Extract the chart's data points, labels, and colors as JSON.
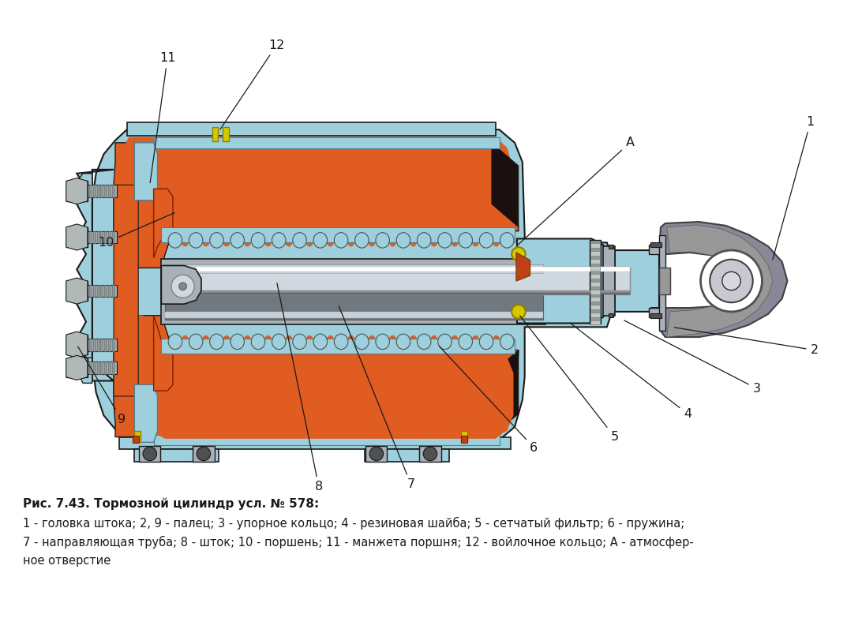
{
  "title": "Рис. 7.43. Тормозной цилиндр усл. № 578:",
  "caption_line1": "1 - головка штока; 2, 9 - палец; 3 - упорное кольцо; 4 - резиновая шайба; 5 - сетчатый фильтр; 6 - пружина;",
  "caption_line2": "7 - направляющая труба; 8 - шток; 10 - поршень; 11 - манжета поршня; 12 - войлочное кольцо; А - атмосфер-",
  "caption_line3": "ное отверстие",
  "bg_color": "#ffffff",
  "light_blue": "#9ecfdc",
  "orange_red": "#e05c20",
  "fig_width": 10.92,
  "fig_height": 7.83
}
